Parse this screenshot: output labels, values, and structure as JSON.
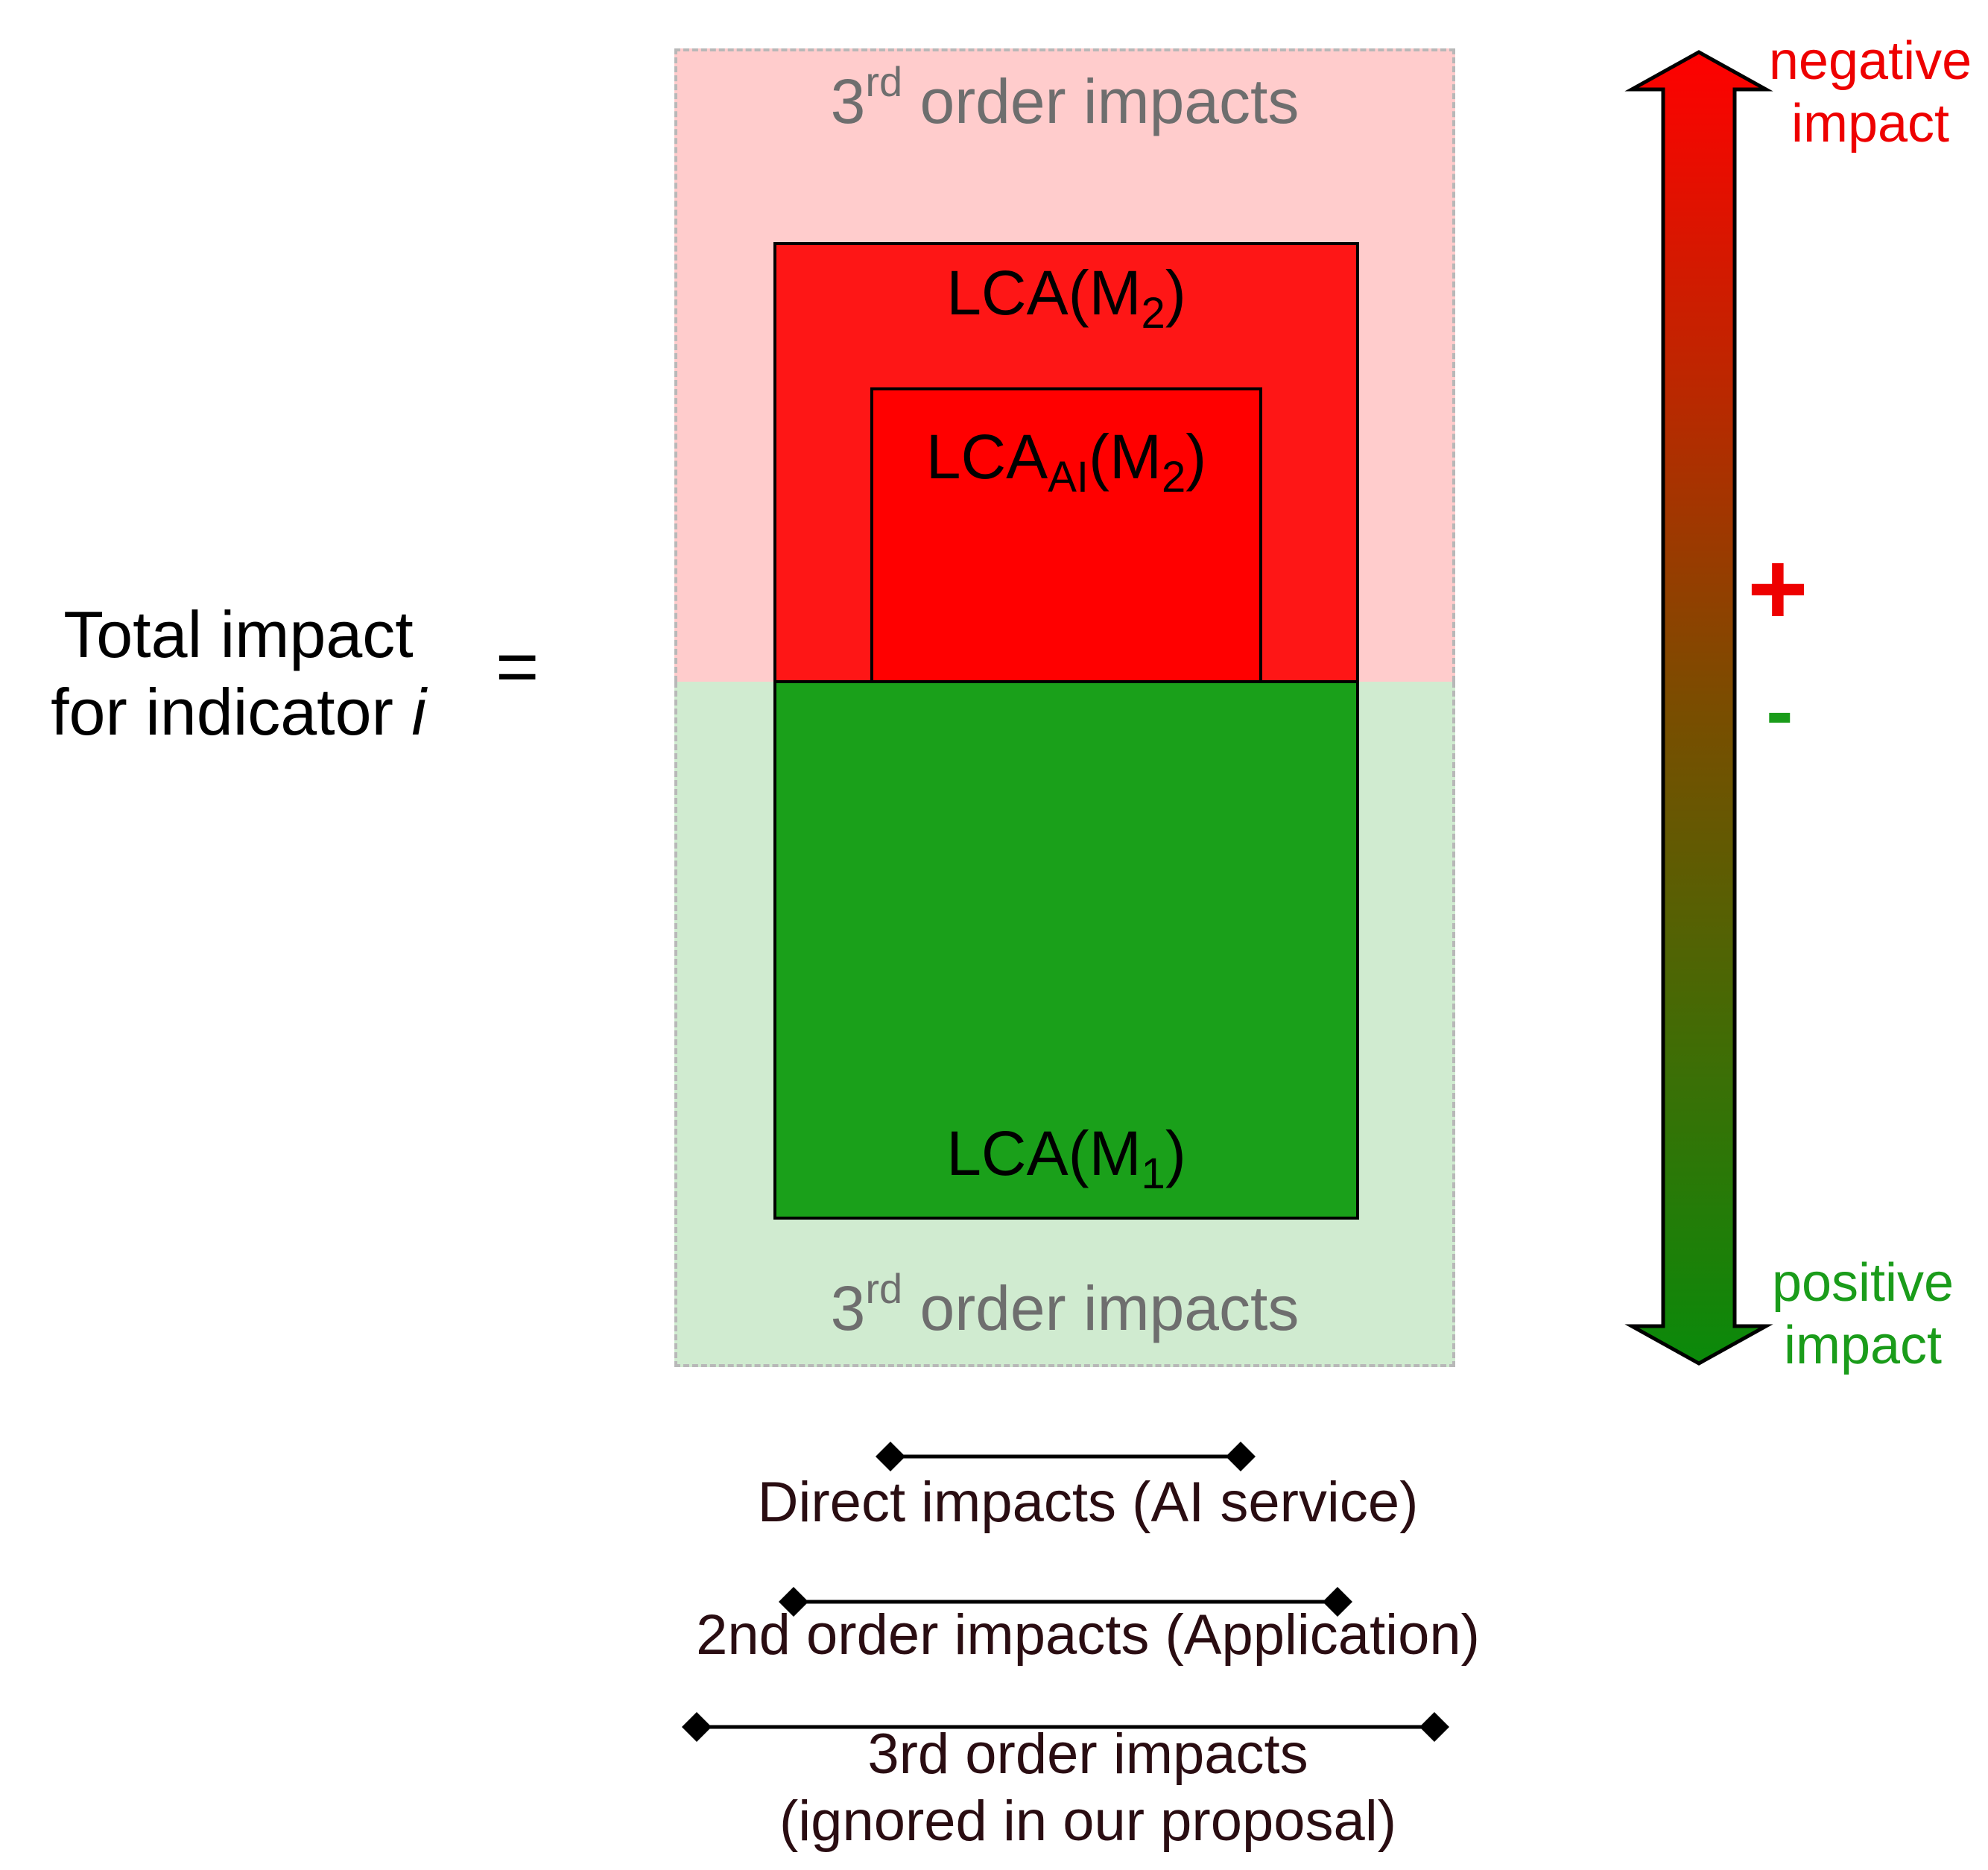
{
  "total": {
    "line1": "Total impact",
    "line2_prefix": "for indicator ",
    "line2_var": "i",
    "equals": "="
  },
  "third_order_top": {
    "prefix": "3",
    "sup": "rd",
    "suffix": " order impacts"
  },
  "third_order_bottom": {
    "prefix": "3",
    "sup": "rd",
    "suffix": " order impacts"
  },
  "lca_m2": {
    "text": "LCA(M",
    "sub": "2",
    "close": ")"
  },
  "lca_ai_m2": {
    "text": "LCA",
    "sub1": "AI",
    "mid": "(M",
    "sub2": "2",
    "close": ")"
  },
  "lca_m1": {
    "text": "LCA(M",
    "sub": "1",
    "close": ")"
  },
  "scale": {
    "negative": {
      "line1": "negative",
      "line2": "impact"
    },
    "positive": {
      "line1": "positive",
      "line2": "impact"
    },
    "plus": "+",
    "minus": "-"
  },
  "brackets": {
    "direct": "Direct impacts (AI service)",
    "second": "2nd order impacts (Application)",
    "third_line1": "3rd order impacts",
    "third_line2": "(ignored in our proposal)"
  },
  "colors": {
    "negative_zone": "#ffcccc",
    "positive_zone": "#d0ebd0",
    "lca_m2": "#fe1616",
    "lca_ai": "#ff0000",
    "lca_m1": "#1aa01a",
    "negative_text": "#ee0000",
    "positive_text": "#1a9c1a"
  }
}
